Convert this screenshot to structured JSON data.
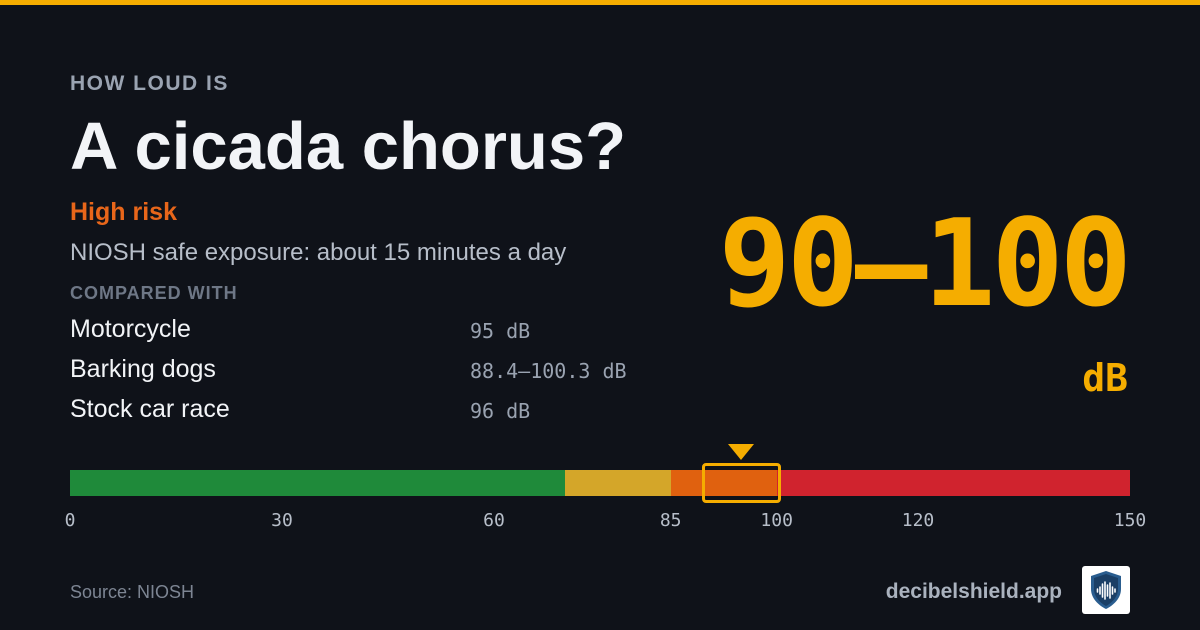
{
  "eyebrow": "HOW LOUD IS",
  "title": "A cicada chorus?",
  "risk": {
    "label": "High risk",
    "color": "#e8661a"
  },
  "exposure": "NIOSH safe exposure: about 15 minutes a day",
  "compared": {
    "heading": "COMPARED WITH",
    "items": [
      {
        "name": "Motorcycle",
        "value": "95 dB"
      },
      {
        "name": "Barking dogs",
        "value": "88.4–100.3 dB"
      },
      {
        "name": "Stock car race",
        "value": "96 dB"
      }
    ]
  },
  "level": {
    "value": "90–100",
    "unit": "dB",
    "low_db": 90,
    "high_db": 100
  },
  "meter": {
    "min_db": 0,
    "max_db": 150,
    "segments": [
      {
        "from_db": 0,
        "to_db": 70,
        "color": "#1f8a3a"
      },
      {
        "from_db": 70,
        "to_db": 85,
        "color": "#d4a629"
      },
      {
        "from_db": 85,
        "to_db": 100,
        "color": "#e0610f"
      },
      {
        "from_db": 100,
        "to_db": 150,
        "color": "#d0232e"
      }
    ],
    "ticks": [
      {
        "db": 0,
        "label": "0"
      },
      {
        "db": 30,
        "label": "30"
      },
      {
        "db": 60,
        "label": "60"
      },
      {
        "db": 85,
        "label": "85"
      },
      {
        "db": 100,
        "label": "100"
      },
      {
        "db": 120,
        "label": "120"
      },
      {
        "db": 150,
        "label": "150"
      }
    ],
    "highlight_color": "#f5ad00"
  },
  "source": "Source: NIOSH",
  "brand": {
    "name": "decibelshield.app",
    "logo_icon": "shield-soundwave-icon"
  },
  "colors": {
    "background": "#0f1219",
    "accent": "#f5ad00"
  }
}
